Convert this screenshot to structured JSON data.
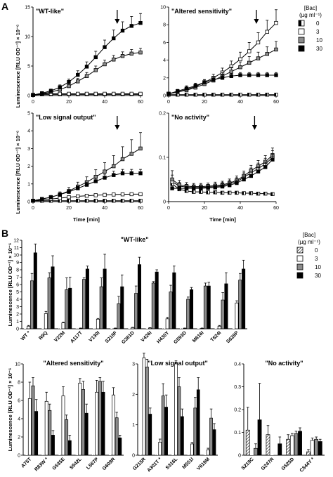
{
  "panel_labels": [
    "A",
    "B"
  ],
  "legend_title": "[Bac]",
  "legend_unit": "(µg ml⁻¹)",
  "legend_levels": [
    "0",
    "3",
    "10",
    "30"
  ],
  "colors": {
    "c0": "#ffffff",
    "c3": "#ffffff",
    "c10": "#8c8c8c",
    "c30": "#000000"
  },
  "a_ylabel": "Luminescence [RLU OD⁻¹] × 10⁻⁶",
  "a_xlabel": "Time [min]",
  "b_ylabel": "Luminescence [RLU OD⁻¹] × 10⁻⁶",
  "chart_data": [
    {
      "type": "line",
      "title": "\"WT-like\"",
      "x": [
        0,
        5,
        10,
        15,
        20,
        25,
        30,
        35,
        40,
        45,
        50,
        55,
        60
      ],
      "xlim": [
        0,
        60
      ],
      "ylim": [
        0,
        15
      ],
      "yticks": [
        0,
        5,
        10,
        15
      ],
      "xticks": [
        0,
        20,
        40,
        60
      ],
      "arrow_x": 47,
      "series": [
        {
          "name": "0",
          "values": [
            0.1,
            0.2,
            0.2,
            0.2,
            0.2,
            0.2,
            0.2,
            0.2,
            0.2,
            0.2,
            0.2,
            0.2,
            0.2
          ],
          "err": [
            0.05,
            0.05,
            0.05,
            0.05,
            0.05,
            0.05,
            0.05,
            0.05,
            0.05,
            0.05,
            0.05,
            0.05,
            0.05
          ]
        },
        {
          "name": "3",
          "values": [
            0.1,
            0.3,
            0.3,
            0.3,
            0.3,
            0.3,
            0.3,
            0.3,
            0.3,
            0.3,
            0.3,
            0.3,
            0.3
          ],
          "err": [
            0.05,
            0.1,
            0.1,
            0.1,
            0.1,
            0.1,
            0.1,
            0.1,
            0.1,
            0.1,
            0.1,
            0.1,
            0.1
          ]
        },
        {
          "name": "10",
          "values": [
            0.1,
            0.3,
            0.6,
            1.0,
            1.6,
            2.4,
            3.3,
            4.3,
            5.3,
            6.1,
            6.7,
            7.1,
            7.3
          ],
          "err": [
            0.05,
            0.1,
            0.2,
            0.3,
            0.4,
            0.5,
            0.6,
            0.7,
            0.7,
            0.7,
            0.7,
            0.7,
            0.7
          ]
        },
        {
          "name": "30",
          "values": [
            0.1,
            0.4,
            0.8,
            1.4,
            2.3,
            3.5,
            4.9,
            6.5,
            8.2,
            9.7,
            11.0,
            11.8,
            12.3
          ],
          "err": [
            0.05,
            0.2,
            0.3,
            0.4,
            0.5,
            0.7,
            0.8,
            1.0,
            1.2,
            1.4,
            1.5,
            1.6,
            1.6
          ]
        }
      ]
    },
    {
      "type": "line",
      "title": "\"Altered sensitivity\"",
      "x": [
        0,
        5,
        10,
        15,
        20,
        25,
        30,
        35,
        40,
        45,
        50,
        55,
        60
      ],
      "xlim": [
        0,
        60
      ],
      "ylim": [
        0,
        10
      ],
      "yticks": [
        0,
        2,
        4,
        6,
        8,
        10
      ],
      "xticks": [
        0,
        20,
        40,
        60
      ],
      "arrow_x": 49,
      "series": [
        {
          "name": "0",
          "values": [
            0.1,
            0.1,
            0.1,
            0.1,
            0.1,
            0.1,
            0.1,
            0.1,
            0.1,
            0.1,
            0.1,
            0.1,
            0.1
          ],
          "err": [
            0.05,
            0.05,
            0.05,
            0.05,
            0.05,
            0.05,
            0.05,
            0.05,
            0.05,
            0.05,
            0.05,
            0.05,
            0.05
          ]
        },
        {
          "name": "3",
          "values": [
            0.2,
            0.4,
            0.7,
            1.0,
            1.5,
            2.0,
            2.6,
            3.3,
            4.1,
            5.0,
            6.0,
            7.2,
            8.2
          ],
          "err": [
            0.1,
            0.2,
            0.2,
            0.3,
            0.3,
            0.4,
            0.5,
            0.6,
            0.8,
            1.0,
            1.1,
            1.3,
            1.5
          ]
        },
        {
          "name": "10",
          "values": [
            0.2,
            0.4,
            0.6,
            0.9,
            1.3,
            1.7,
            2.2,
            2.7,
            3.2,
            3.7,
            4.2,
            4.7,
            5.2
          ],
          "err": [
            0.1,
            0.1,
            0.2,
            0.2,
            0.3,
            0.3,
            0.4,
            0.5,
            0.6,
            0.7,
            0.7,
            0.8,
            0.9
          ]
        },
        {
          "name": "30",
          "values": [
            0.2,
            0.5,
            0.8,
            1.1,
            1.5,
            1.8,
            2.0,
            2.2,
            2.3,
            2.3,
            2.3,
            2.3,
            2.3
          ],
          "err": [
            0.1,
            0.2,
            0.3,
            0.3,
            0.3,
            0.3,
            0.3,
            0.3,
            0.3,
            0.3,
            0.3,
            0.3,
            0.3
          ]
        }
      ]
    },
    {
      "type": "line",
      "title": "\"Low signal output\"",
      "x": [
        0,
        5,
        10,
        15,
        20,
        25,
        30,
        35,
        40,
        45,
        50,
        55,
        60
      ],
      "xlim": [
        0,
        60
      ],
      "ylim": [
        0,
        5
      ],
      "yticks": [
        0,
        1,
        2,
        3,
        4,
        5
      ],
      "xticks": [
        0,
        20,
        40,
        60
      ],
      "arrow_x": 47,
      "series": [
        {
          "name": "0",
          "values": [
            0.05,
            0.05,
            0.05,
            0.05,
            0.05,
            0.05,
            0.05,
            0.05,
            0.05,
            0.05,
            0.05,
            0.05,
            0.05
          ],
          "err": [
            0.02,
            0.02,
            0.02,
            0.02,
            0.02,
            0.02,
            0.02,
            0.02,
            0.02,
            0.02,
            0.02,
            0.02,
            0.02
          ]
        },
        {
          "name": "3",
          "values": [
            0.05,
            0.1,
            0.15,
            0.2,
            0.25,
            0.3,
            0.33,
            0.36,
            0.38,
            0.4,
            0.41,
            0.42,
            0.42
          ],
          "err": [
            0.02,
            0.03,
            0.03,
            0.04,
            0.04,
            0.04,
            0.04,
            0.04,
            0.04,
            0.04,
            0.04,
            0.04,
            0.04
          ]
        },
        {
          "name": "10",
          "values": [
            0.05,
            0.15,
            0.25,
            0.4,
            0.6,
            0.85,
            1.1,
            1.4,
            1.7,
            2.0,
            2.4,
            2.7,
            3.0
          ],
          "err": [
            0.02,
            0.05,
            0.1,
            0.15,
            0.2,
            0.25,
            0.3,
            0.4,
            0.5,
            0.6,
            0.7,
            0.8,
            0.9
          ]
        },
        {
          "name": "30",
          "values": [
            0.05,
            0.15,
            0.25,
            0.4,
            0.55,
            0.75,
            0.95,
            1.15,
            1.35,
            1.5,
            1.6,
            1.6,
            1.6
          ],
          "err": [
            0.02,
            0.04,
            0.06,
            0.08,
            0.1,
            0.12,
            0.15,
            0.18,
            0.2,
            0.22,
            0.22,
            0.22,
            0.22
          ]
        }
      ]
    },
    {
      "type": "line",
      "title": "\"No activity\"",
      "x": [
        2,
        6,
        10,
        14,
        18,
        22,
        26,
        30,
        34,
        38,
        42,
        46,
        50,
        54,
        58
      ],
      "xlim": [
        0,
        60
      ],
      "ylim": [
        0,
        0.2
      ],
      "yticks": [
        0,
        0.1,
        0.2
      ],
      "xticks": [
        0,
        20,
        40,
        60
      ],
      "arrow_x": 48,
      "series": [
        {
          "name": "0",
          "values": [
            0.04,
            0.028,
            0.024,
            0.022,
            0.022,
            0.021,
            0.021,
            0.02,
            0.02,
            0.02,
            0.019,
            0.019,
            0.018,
            0.018,
            0.017
          ],
          "err": [
            0.006,
            0.004,
            0.003,
            0.003,
            0.003,
            0.003,
            0.003,
            0.003,
            0.003,
            0.003,
            0.003,
            0.003,
            0.003,
            0.003,
            0.003
          ]
        },
        {
          "name": "3",
          "values": [
            0.045,
            0.035,
            0.033,
            0.032,
            0.032,
            0.033,
            0.034,
            0.036,
            0.04,
            0.045,
            0.055,
            0.065,
            0.075,
            0.085,
            0.1
          ],
          "err": [
            0.015,
            0.008,
            0.006,
            0.006,
            0.006,
            0.006,
            0.006,
            0.007,
            0.008,
            0.009,
            0.01,
            0.011,
            0.012,
            0.013,
            0.015
          ]
        },
        {
          "name": "10",
          "values": [
            0.05,
            0.038,
            0.035,
            0.034,
            0.034,
            0.035,
            0.036,
            0.038,
            0.042,
            0.048,
            0.058,
            0.07,
            0.08,
            0.09,
            0.105
          ],
          "err": [
            0.02,
            0.01,
            0.008,
            0.007,
            0.007,
            0.007,
            0.008,
            0.008,
            0.009,
            0.01,
            0.011,
            0.012,
            0.013,
            0.014,
            0.016
          ]
        },
        {
          "name": "30",
          "values": [
            0.03,
            0.03,
            0.03,
            0.03,
            0.03,
            0.031,
            0.032,
            0.034,
            0.037,
            0.042,
            0.05,
            0.058,
            0.068,
            0.078,
            0.095
          ],
          "err": [
            0.006,
            0.005,
            0.005,
            0.005,
            0.005,
            0.005,
            0.005,
            0.006,
            0.006,
            0.007,
            0.008,
            0.009,
            0.01,
            0.011,
            0.012
          ]
        }
      ]
    },
    {
      "type": "bar",
      "title": "\"WT-like\"",
      "ylim": [
        0,
        12
      ],
      "yticks": [
        0,
        1,
        2,
        3,
        4,
        5,
        6,
        7,
        8,
        9,
        10,
        11,
        12
      ],
      "categories": [
        "WT *",
        "R9Q",
        "V22M",
        "A117T",
        "V130I",
        "S219F",
        "G381D",
        "V426I",
        "H430Y",
        "G593D",
        "M616I",
        "T624I",
        "S628P"
      ],
      "series": [
        {
          "name": "0",
          "values": [
            0,
            0,
            0,
            0,
            0,
            0,
            0,
            0,
            0,
            0,
            0,
            0,
            0
          ]
        },
        {
          "name": "3",
          "values": [
            0.35,
            2.05,
            0.8,
            0.05,
            1.3,
            0.05,
            0.15,
            0.1,
            1.35,
            0.05,
            0.05,
            0.35,
            3.5
          ]
        },
        {
          "name": "10",
          "values": [
            6.5,
            6.9,
            5.3,
            6.7,
            5.7,
            3.4,
            4.8,
            6.2,
            5.0,
            4.0,
            5.8,
            3.9,
            6.6
          ]
        },
        {
          "name": "30",
          "values": [
            10.3,
            8.4,
            5.5,
            8.1,
            8.1,
            5.7,
            8.7,
            7.7,
            7.6,
            5.3,
            5.8,
            6.1,
            8.1
          ]
        }
      ],
      "errors": [
        [
          0,
          0,
          0,
          0,
          0,
          0,
          0,
          0,
          0,
          0,
          0,
          0,
          0
        ],
        [
          0.1,
          0.3,
          0.1,
          0.05,
          0.1,
          0.05,
          0.05,
          0.05,
          0.2,
          0.05,
          0.05,
          0.1,
          0.3
        ],
        [
          1.0,
          0.7,
          1.6,
          0.2,
          1.2,
          1.0,
          1.0,
          0.2,
          0.9,
          0.3,
          0.4,
          1.0,
          0.9
        ],
        [
          1.2,
          1.5,
          1.5,
          0.4,
          2.0,
          1.6,
          1.0,
          0.3,
          0.9,
          0.3,
          0.5,
          1.5,
          1.2
        ]
      ]
    },
    {
      "type": "bar",
      "title": "\"Altered sensitivity\"",
      "ylim": [
        0,
        10
      ],
      "yticks": [
        0,
        2,
        4,
        6,
        8,
        10
      ],
      "categories": [
        "A75T",
        "R83W *",
        "G535E",
        "S542L",
        "L567P",
        "G609R"
      ],
      "series": [
        {
          "name": "0",
          "values": [
            0,
            0,
            0,
            0,
            0,
            0
          ]
        },
        {
          "name": "3",
          "values": [
            6.2,
            5.9,
            6.5,
            7.9,
            6.9,
            6.6
          ]
        },
        {
          "name": "10",
          "values": [
            7.6,
            4.9,
            3.9,
            7.2,
            8.1,
            4.1
          ]
        },
        {
          "name": "30",
          "values": [
            4.8,
            2.2,
            1.6,
            4.6,
            6.9,
            1.9
          ]
        }
      ],
      "errors": [
        [
          0,
          0,
          0,
          0,
          0,
          0
        ],
        [
          1.8,
          1.0,
          1.0,
          0.5,
          1.3,
          0.8
        ],
        [
          0.9,
          0.7,
          0.5,
          0.9,
          0.4,
          0.6
        ],
        [
          1.3,
          0.5,
          0.6,
          1.0,
          1.2,
          0.3
        ]
      ]
    },
    {
      "type": "bar",
      "title": "\"Low signal output\"",
      "ylim": [
        0,
        3
      ],
      "yticks": [
        0,
        1,
        2,
        3
      ],
      "categories": [
        "G215R",
        "A301T *",
        "S316L",
        "M551I",
        "V619M"
      ],
      "series": [
        {
          "name": "0",
          "values": [
            0,
            0,
            0,
            0,
            0
          ]
        },
        {
          "name": "3",
          "values": [
            3.2,
            0.43,
            3.0,
            0.37,
            0.18
          ]
        },
        {
          "name": "10",
          "values": [
            2.9,
            1.95,
            2.25,
            1.55,
            1.22
          ]
        },
        {
          "name": "30",
          "values": [
            1.35,
            1.58,
            1.27,
            2.15,
            0.84
          ]
        }
      ],
      "errors": [
        [
          0,
          0,
          0,
          0,
          0
        ],
        [
          0.15,
          0.1,
          0.1,
          0.05,
          0.05
        ],
        [
          0.25,
          0.4,
          0.3,
          0.35,
          0.3
        ],
        [
          0.2,
          0.4,
          0.25,
          0.4,
          0.2
        ]
      ]
    },
    {
      "type": "bar",
      "title": "\"No activity\"",
      "ylim": [
        0,
        0.4
      ],
      "yticks": [
        0,
        0.1,
        0.2,
        0.3,
        0.4
      ],
      "categories": [
        "S219C",
        "G247R",
        "G525D",
        "C544Y *"
      ],
      "series": [
        {
          "name": "0",
          "values": [
            0.11,
            0.09,
            0.07,
            0.015
          ]
        },
        {
          "name": "3",
          "values": [
            0.0,
            0.0,
            0.085,
            0.065
          ]
        },
        {
          "name": "10",
          "values": [
            0.03,
            0.0,
            0.095,
            0.07
          ]
        },
        {
          "name": "30",
          "values": [
            0.155,
            0.05,
            0.105,
            0.06
          ]
        }
      ],
      "errors": [
        [
          0.1,
          0.04,
          0.02,
          0.01
        ],
        [
          0.0,
          0.0,
          0.01,
          0.01
        ],
        [
          0.02,
          0.0,
          0.01,
          0.01
        ],
        [
          0.16,
          0.03,
          0.015,
          0.01
        ]
      ]
    }
  ]
}
